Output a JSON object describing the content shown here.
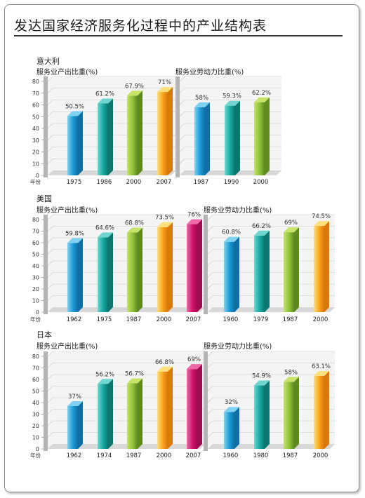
{
  "title": "发达国家经济服务化过程中的产业结构表",
  "year_label": "年份",
  "colors": {
    "blue": [
      "#7fd2f2",
      "#1b9ad6",
      "#0f6ea3"
    ],
    "teal": [
      "#6fd6cf",
      "#14a8a0",
      "#0b7770"
    ],
    "green": [
      "#c7e36a",
      "#8cc13a",
      "#5f8a1f"
    ],
    "orange": [
      "#fde07a",
      "#f7a21a",
      "#d9780c"
    ],
    "magenta": [
      "#f06aa8",
      "#d8116e",
      "#9f0c50"
    ]
  },
  "chart_data": [
    {
      "country": "意大利",
      "panels": [
        {
          "type": "bar",
          "title": "服务业产出比重(%)",
          "ylim": [
            0,
            80
          ],
          "yticks": [
            0,
            10,
            20,
            30,
            40,
            50,
            60,
            70,
            80
          ],
          "categories": [
            "1975",
            "1986",
            "2000",
            "2007"
          ],
          "values": [
            50.5,
            61.2,
            67.9,
            71
          ],
          "labels": [
            "50.5%",
            "61.2%",
            "67.9%",
            "71%"
          ],
          "colors": [
            "blue",
            "teal",
            "green",
            "orange"
          ]
        },
        {
          "type": "bar",
          "title": "服务业劳动力比重(%)",
          "ylim": [
            0,
            80
          ],
          "categories": [
            "1987",
            "1990",
            "2000"
          ],
          "values": [
            58,
            59.3,
            62.2
          ],
          "labels": [
            "58%",
            "59.3%",
            "62.2%"
          ],
          "colors": [
            "blue",
            "teal",
            "green"
          ]
        }
      ]
    },
    {
      "country": "美国",
      "panels": [
        {
          "type": "bar",
          "title": "服务业产出比重(%)",
          "ylim": [
            0,
            80
          ],
          "yticks": [
            0,
            10,
            20,
            30,
            40,
            50,
            60,
            70,
            80
          ],
          "categories": [
            "1962",
            "1975",
            "1987",
            "2000",
            "2007"
          ],
          "values": [
            59.8,
            64.6,
            68.8,
            73.5,
            76
          ],
          "labels": [
            "59.8%",
            "64.6%",
            "68.8%",
            "73.5%",
            "76%"
          ],
          "colors": [
            "blue",
            "teal",
            "green",
            "orange",
            "magenta"
          ]
        },
        {
          "type": "bar",
          "title": "服务业劳动力比重(%)",
          "ylim": [
            0,
            80
          ],
          "categories": [
            "1960",
            "1979",
            "1987",
            "2000"
          ],
          "values": [
            60.8,
            66.2,
            69,
            74.5
          ],
          "labels": [
            "60.8%",
            "66.2%",
            "69%",
            "74.5%"
          ],
          "colors": [
            "blue",
            "teal",
            "green",
            "orange"
          ]
        }
      ]
    },
    {
      "country": "日本",
      "panels": [
        {
          "type": "bar",
          "title": "服务业产出比重(%)",
          "ylim": [
            0,
            80
          ],
          "yticks": [
            0,
            10,
            20,
            30,
            40,
            50,
            60,
            70,
            80
          ],
          "categories": [
            "1962",
            "1974",
            "1987",
            "2000",
            "2007"
          ],
          "values": [
            37,
            56.2,
            56.7,
            66.8,
            69
          ],
          "labels": [
            "37%",
            "56.2%",
            "56.7%",
            "66.8%",
            "69%"
          ],
          "colors": [
            "blue",
            "teal",
            "green",
            "orange",
            "magenta"
          ]
        },
        {
          "type": "bar",
          "title": "服务业劳动力比重(%)",
          "ylim": [
            0,
            80
          ],
          "categories": [
            "1960",
            "1980",
            "1987",
            "2000"
          ],
          "values": [
            32,
            54.9,
            58,
            63.1
          ],
          "labels": [
            "32%",
            "54.9%",
            "58%",
            "63.1%"
          ],
          "colors": [
            "blue",
            "teal",
            "green",
            "orange"
          ]
        }
      ]
    }
  ]
}
